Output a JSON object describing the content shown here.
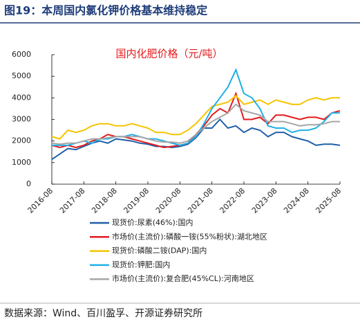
{
  "header": {
    "title": "图19：本周国内氯化钾价格基本维持稳定"
  },
  "chart_data": {
    "type": "line",
    "title": "国内化肥价格（元/吨）",
    "x": [
      "2016-08",
      "2016-11",
      "2017-02",
      "2017-05",
      "2017-08",
      "2017-11",
      "2018-02",
      "2018-05",
      "2018-08",
      "2018-11",
      "2019-02",
      "2019-05",
      "2019-08",
      "2019-11",
      "2020-02",
      "2020-05",
      "2020-08",
      "2020-11",
      "2021-02",
      "2021-05",
      "2021-08",
      "2021-11",
      "2022-02",
      "2022-05",
      "2022-08",
      "2022-11",
      "2023-02",
      "2023-05",
      "2023-08",
      "2023-11",
      "2024-02",
      "2024-05",
      "2024-08",
      "2024-11",
      "2025-02",
      "2025-05",
      "2025-08"
    ],
    "xticks": [
      "2016-08",
      "2017-08",
      "2018-08",
      "2019-08",
      "2020-08",
      "2021-08",
      "2022-08",
      "2023-08",
      "2024-08",
      "2025-08"
    ],
    "ylim": [
      0,
      6000
    ],
    "yticks": [
      0,
      1000,
      2000,
      3000,
      4000,
      5000,
      6000
    ],
    "series": [
      {
        "name": "现货价:尿素(46%):国内",
        "color": "#1f5fa8",
        "values": [
          1150,
          1400,
          1650,
          1600,
          1750,
          1900,
          2000,
          1900,
          2100,
          2050,
          2000,
          1900,
          1850,
          1750,
          1750,
          1700,
          1750,
          1850,
          2150,
          2600,
          2600,
          3000,
          2600,
          2700,
          2400,
          2600,
          2500,
          2200,
          2400,
          2400,
          2200,
          2100,
          2000,
          1800,
          1850,
          1850,
          1800
        ]
      },
      {
        "name": "市场价(主流价):磷酸一铵(55%粉状):湖北地区",
        "color": "#e41a1c",
        "values": [
          1800,
          1700,
          1800,
          1700,
          1800,
          2000,
          2100,
          2300,
          2200,
          2200,
          2100,
          2000,
          1900,
          1800,
          1700,
          1750,
          1800,
          1900,
          2300,
          2700,
          3200,
          3500,
          3300,
          4200,
          3000,
          3000,
          3100,
          2800,
          3200,
          3200,
          3100,
          3000,
          3100,
          3100,
          3000,
          3300,
          3400
        ]
      },
      {
        "name": "现货价:磷酸二铵(DAP):国内",
        "color": "#f5c400",
        "values": [
          2200,
          2100,
          2500,
          2400,
          2500,
          2700,
          2800,
          2800,
          2700,
          2700,
          2800,
          2700,
          2600,
          2400,
          2400,
          2300,
          2300,
          2500,
          2800,
          3200,
          3600,
          3700,
          3800,
          4100,
          3700,
          3800,
          3900,
          3700,
          3900,
          3800,
          3700,
          3700,
          3900,
          4000,
          3900,
          4000,
          4000
        ]
      },
      {
        "name": "现货价:钾肥:国内",
        "color": "#1fb0e6",
        "values": [
          1800,
          1800,
          1800,
          1900,
          2000,
          1900,
          2100,
          2100,
          2200,
          2200,
          2300,
          2200,
          2100,
          2100,
          2000,
          1900,
          1800,
          1900,
          2200,
          2800,
          3500,
          4000,
          4500,
          5300,
          4200,
          4000,
          3500,
          2700,
          2600,
          2600,
          2400,
          2500,
          2500,
          2600,
          2900,
          3300,
          3300
        ]
      },
      {
        "name": "市场价(主流价):复合肥(45%CL):河南地区",
        "color": "#a6a6a6",
        "values": [
          1900,
          1850,
          1900,
          1900,
          2000,
          2100,
          2100,
          2150,
          2200,
          2200,
          2200,
          2200,
          2100,
          2000,
          1950,
          1950,
          1900,
          2000,
          2300,
          2600,
          2900,
          3100,
          3300,
          3700,
          3400,
          3300,
          3200,
          2900,
          2900,
          2900,
          2800,
          2700,
          2750,
          2750,
          2800,
          2900,
          2900
        ]
      }
    ]
  },
  "source": "数据来源：Wind、百川盈孚、开源证券研究所"
}
